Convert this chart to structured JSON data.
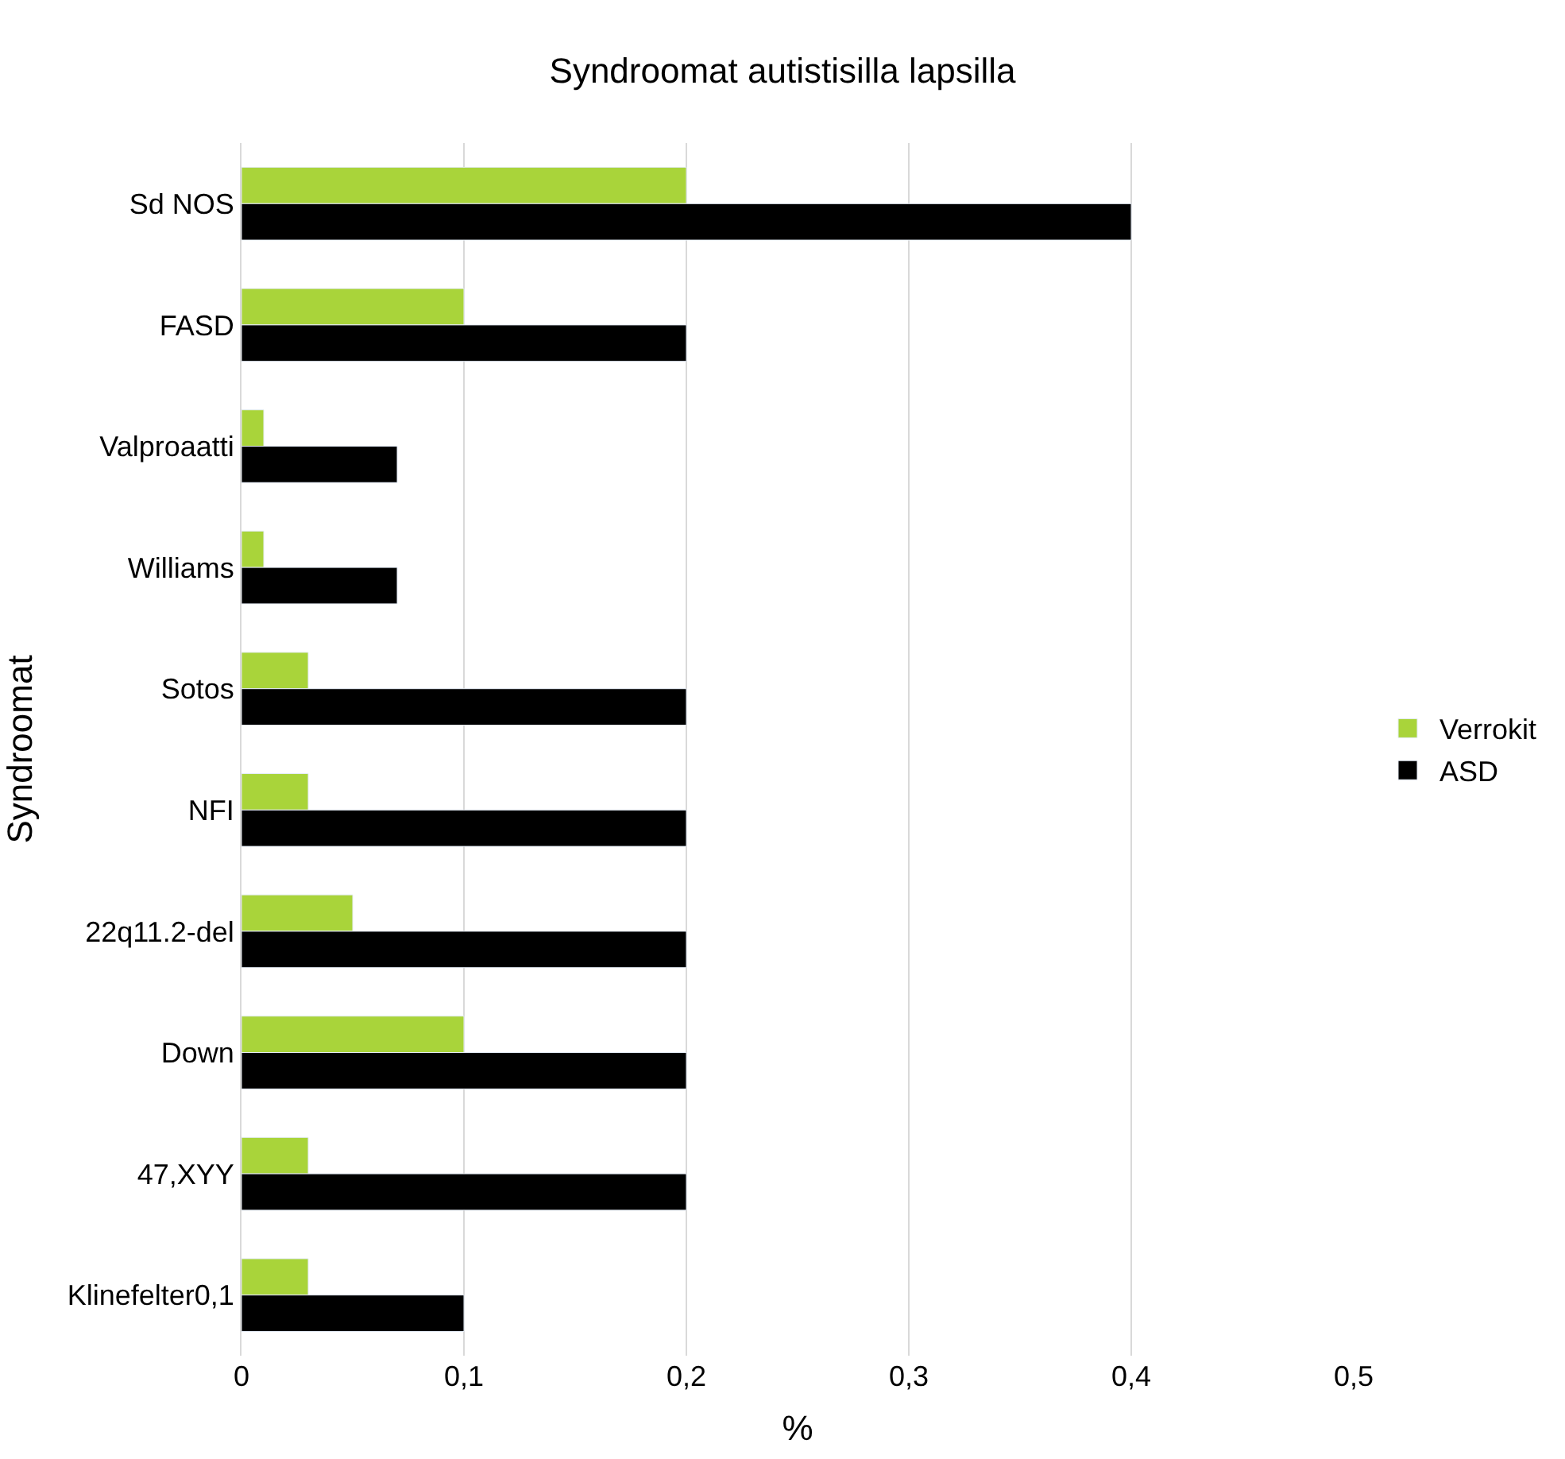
{
  "chart_data": {
    "type": "bar",
    "orientation": "horizontal",
    "title": "Syndroomat autistisilla lapsilla",
    "xlabel": "%",
    "ylabel": "Syndroomat",
    "categories": [
      "Sd NOS",
      "FASD",
      "Valproaatti",
      "Williams",
      "Sotos",
      "NFI",
      "22q11.2-del",
      "Down",
      "47,XYY",
      "Klinefelter0,1"
    ],
    "series": [
      {
        "name": "Verrokit",
        "color": "#a9d43a",
        "values": [
          0.2,
          0.1,
          0.01,
          0.01,
          0.03,
          0.03,
          0.05,
          0.1,
          0.03,
          0.03
        ]
      },
      {
        "name": "ASD",
        "color": "#000000",
        "values": [
          0.4,
          0.2,
          0.07,
          0.07,
          0.2,
          0.2,
          0.2,
          0.2,
          0.2,
          0.1
        ]
      }
    ],
    "xlim": [
      0,
      0.5
    ],
    "xticks": [
      0,
      {
        "value": 0.1,
        "label": "0,1"
      },
      {
        "value": 0.2,
        "label": "0,2"
      },
      {
        "value": 0.3,
        "label": "0,3"
      },
      {
        "value": 0.4,
        "label": "0,4"
      },
      {
        "value": 0.5,
        "label": "0,5"
      }
    ],
    "grid": "x",
    "legend": "right"
  }
}
